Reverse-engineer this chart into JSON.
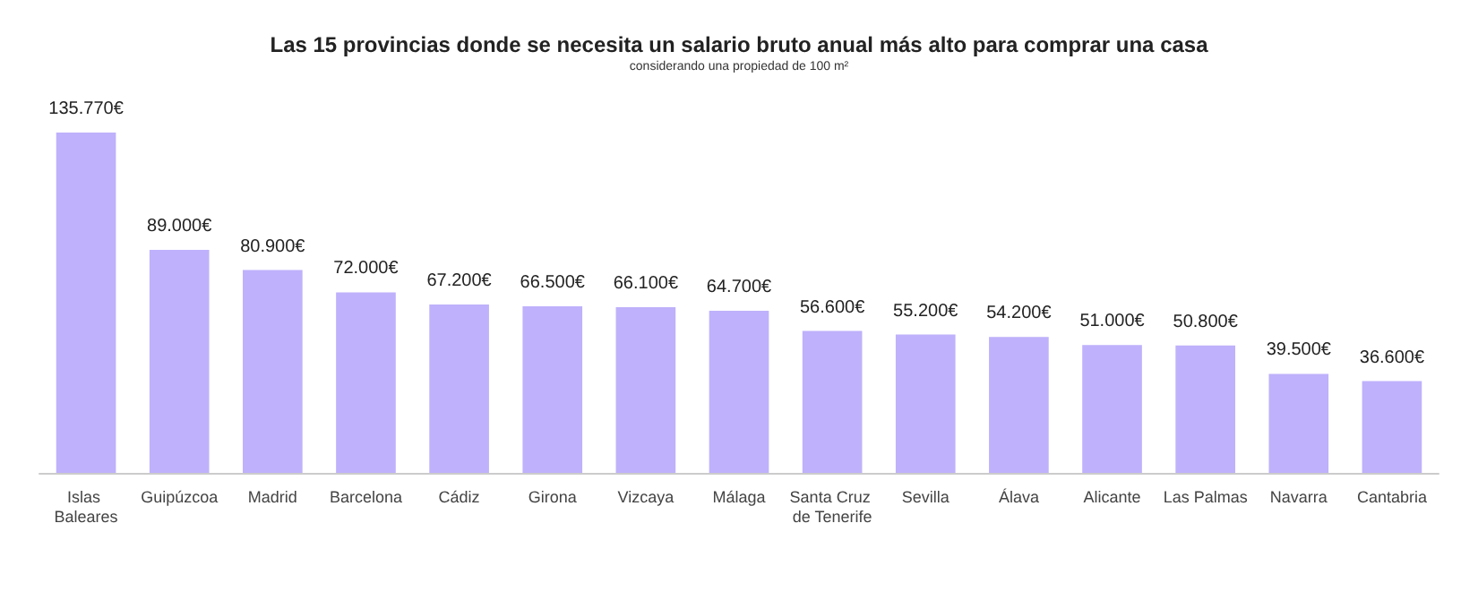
{
  "chart_data": {
    "type": "bar",
    "title": "Las 15 provincias donde se necesita un salario bruto anual más alto para comprar una casa",
    "subtitle": "considerando una propiedad de 100 m²",
    "categories": [
      "Islas Baleares",
      "Guipúzcoa",
      "Madrid",
      "Barcelona",
      "Cádiz",
      "Girona",
      "Vizcaya",
      "Málaga",
      "Santa Cruz de Tenerife",
      "Sevilla",
      "Álava",
      "Alicante",
      "Las Palmas",
      "Navarra",
      "Cantabria"
    ],
    "values": [
      135770,
      89000,
      80900,
      72000,
      67200,
      66500,
      66100,
      64700,
      56600,
      55200,
      54200,
      51000,
      50800,
      39500,
      36600
    ],
    "value_labels": [
      "135.770€",
      "89.000€",
      "80.900€",
      "72.000€",
      "67.200€",
      "66.500€",
      "66.100€",
      "64.700€",
      "56.600€",
      "55.200€",
      "54.200€",
      "51.000€",
      "50.800€",
      "39.500€",
      "36.600€"
    ],
    "color": "#bfb1fb"
  }
}
